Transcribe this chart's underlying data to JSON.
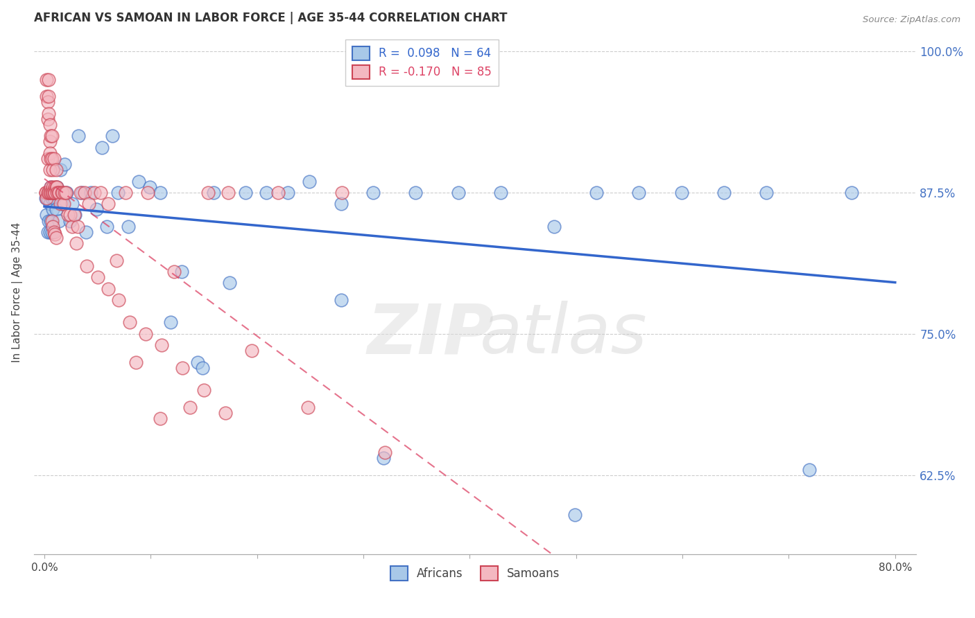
{
  "title": "AFRICAN VS SAMOAN IN LABOR FORCE | AGE 35-44 CORRELATION CHART",
  "source": "Source: ZipAtlas.com",
  "ylabel": "In Labor Force | Age 35-44",
  "xlim": [
    -0.01,
    0.82
  ],
  "ylim": [
    0.555,
    1.018
  ],
  "xtick_positions": [
    0.0,
    0.1,
    0.2,
    0.3,
    0.4,
    0.5,
    0.6,
    0.7,
    0.8
  ],
  "xticklabels": [
    "0.0%",
    "",
    "",
    "",
    "",
    "",
    "",
    "",
    "80.0%"
  ],
  "yticks_right": [
    0.625,
    0.75,
    0.875,
    1.0
  ],
  "yticklabels_right": [
    "62.5%",
    "75.0%",
    "87.5%",
    "100.0%"
  ],
  "african_fill": "#a8c8e8",
  "african_edge": "#4472c4",
  "samoan_fill": "#f4b8c1",
  "samoan_edge": "#cc4455",
  "trendline_african_color": "#3366cc",
  "trendline_samoan_color": "#dd4466",
  "legend_african_R": "0.098",
  "legend_african_N": "64",
  "legend_samoan_R": "-0.170",
  "legend_samoan_N": "85",
  "african_x": [
    0.001,
    0.002,
    0.003,
    0.003,
    0.004,
    0.004,
    0.005,
    0.005,
    0.006,
    0.006,
    0.007,
    0.007,
    0.008,
    0.009,
    0.01,
    0.011,
    0.012,
    0.014,
    0.015,
    0.017,
    0.019,
    0.021,
    0.024,
    0.026,
    0.029,
    0.032,
    0.035,
    0.039,
    0.044,
    0.049,
    0.054,
    0.059,
    0.064,
    0.069,
    0.079,
    0.089,
    0.099,
    0.109,
    0.119,
    0.129,
    0.144,
    0.159,
    0.174,
    0.189,
    0.209,
    0.229,
    0.249,
    0.279,
    0.309,
    0.349,
    0.389,
    0.429,
    0.479,
    0.519,
    0.559,
    0.599,
    0.639,
    0.679,
    0.719,
    0.759,
    0.279,
    0.319,
    0.149,
    0.499
  ],
  "african_y": [
    0.87,
    0.855,
    0.87,
    0.84,
    0.875,
    0.85,
    0.865,
    0.84,
    0.88,
    0.85,
    0.87,
    0.84,
    0.86,
    0.87,
    0.875,
    0.86,
    0.88,
    0.85,
    0.895,
    0.865,
    0.9,
    0.875,
    0.85,
    0.865,
    0.855,
    0.925,
    0.875,
    0.84,
    0.875,
    0.86,
    0.915,
    0.845,
    0.925,
    0.875,
    0.845,
    0.885,
    0.88,
    0.875,
    0.76,
    0.805,
    0.725,
    0.875,
    0.795,
    0.875,
    0.875,
    0.875,
    0.885,
    0.865,
    0.875,
    0.875,
    0.875,
    0.875,
    0.845,
    0.875,
    0.875,
    0.875,
    0.875,
    0.875,
    0.63,
    0.875,
    0.78,
    0.64,
    0.72,
    0.59
  ],
  "samoan_x": [
    0.001,
    0.001,
    0.002,
    0.002,
    0.002,
    0.003,
    0.003,
    0.003,
    0.003,
    0.004,
    0.004,
    0.004,
    0.004,
    0.005,
    0.005,
    0.005,
    0.005,
    0.005,
    0.006,
    0.006,
    0.006,
    0.006,
    0.007,
    0.007,
    0.007,
    0.008,
    0.008,
    0.008,
    0.009,
    0.009,
    0.01,
    0.01,
    0.011,
    0.011,
    0.012,
    0.012,
    0.013,
    0.014,
    0.015,
    0.016,
    0.017,
    0.018,
    0.019,
    0.02,
    0.022,
    0.024,
    0.026,
    0.028,
    0.031,
    0.034,
    0.038,
    0.042,
    0.047,
    0.053,
    0.06,
    0.068,
    0.076,
    0.086,
    0.097,
    0.109,
    0.122,
    0.137,
    0.154,
    0.173,
    0.195,
    0.22,
    0.248,
    0.28,
    0.32,
    0.03,
    0.04,
    0.05,
    0.06,
    0.07,
    0.08,
    0.095,
    0.11,
    0.13,
    0.15,
    0.17,
    0.007,
    0.008,
    0.009,
    0.01,
    0.011
  ],
  "samoan_y": [
    0.875,
    0.875,
    0.975,
    0.96,
    0.87,
    0.94,
    0.955,
    0.875,
    0.905,
    0.975,
    0.96,
    0.945,
    0.875,
    0.92,
    0.935,
    0.91,
    0.895,
    0.875,
    0.905,
    0.925,
    0.88,
    0.875,
    0.905,
    0.925,
    0.875,
    0.88,
    0.895,
    0.875,
    0.905,
    0.875,
    0.88,
    0.875,
    0.88,
    0.895,
    0.88,
    0.875,
    0.875,
    0.875,
    0.865,
    0.875,
    0.875,
    0.865,
    0.875,
    0.875,
    0.855,
    0.855,
    0.845,
    0.855,
    0.845,
    0.875,
    0.875,
    0.865,
    0.875,
    0.875,
    0.865,
    0.815,
    0.875,
    0.725,
    0.875,
    0.675,
    0.805,
    0.685,
    0.875,
    0.875,
    0.735,
    0.875,
    0.685,
    0.875,
    0.645,
    0.83,
    0.81,
    0.8,
    0.79,
    0.78,
    0.76,
    0.75,
    0.74,
    0.72,
    0.7,
    0.68,
    0.85,
    0.845,
    0.84,
    0.838,
    0.835
  ]
}
